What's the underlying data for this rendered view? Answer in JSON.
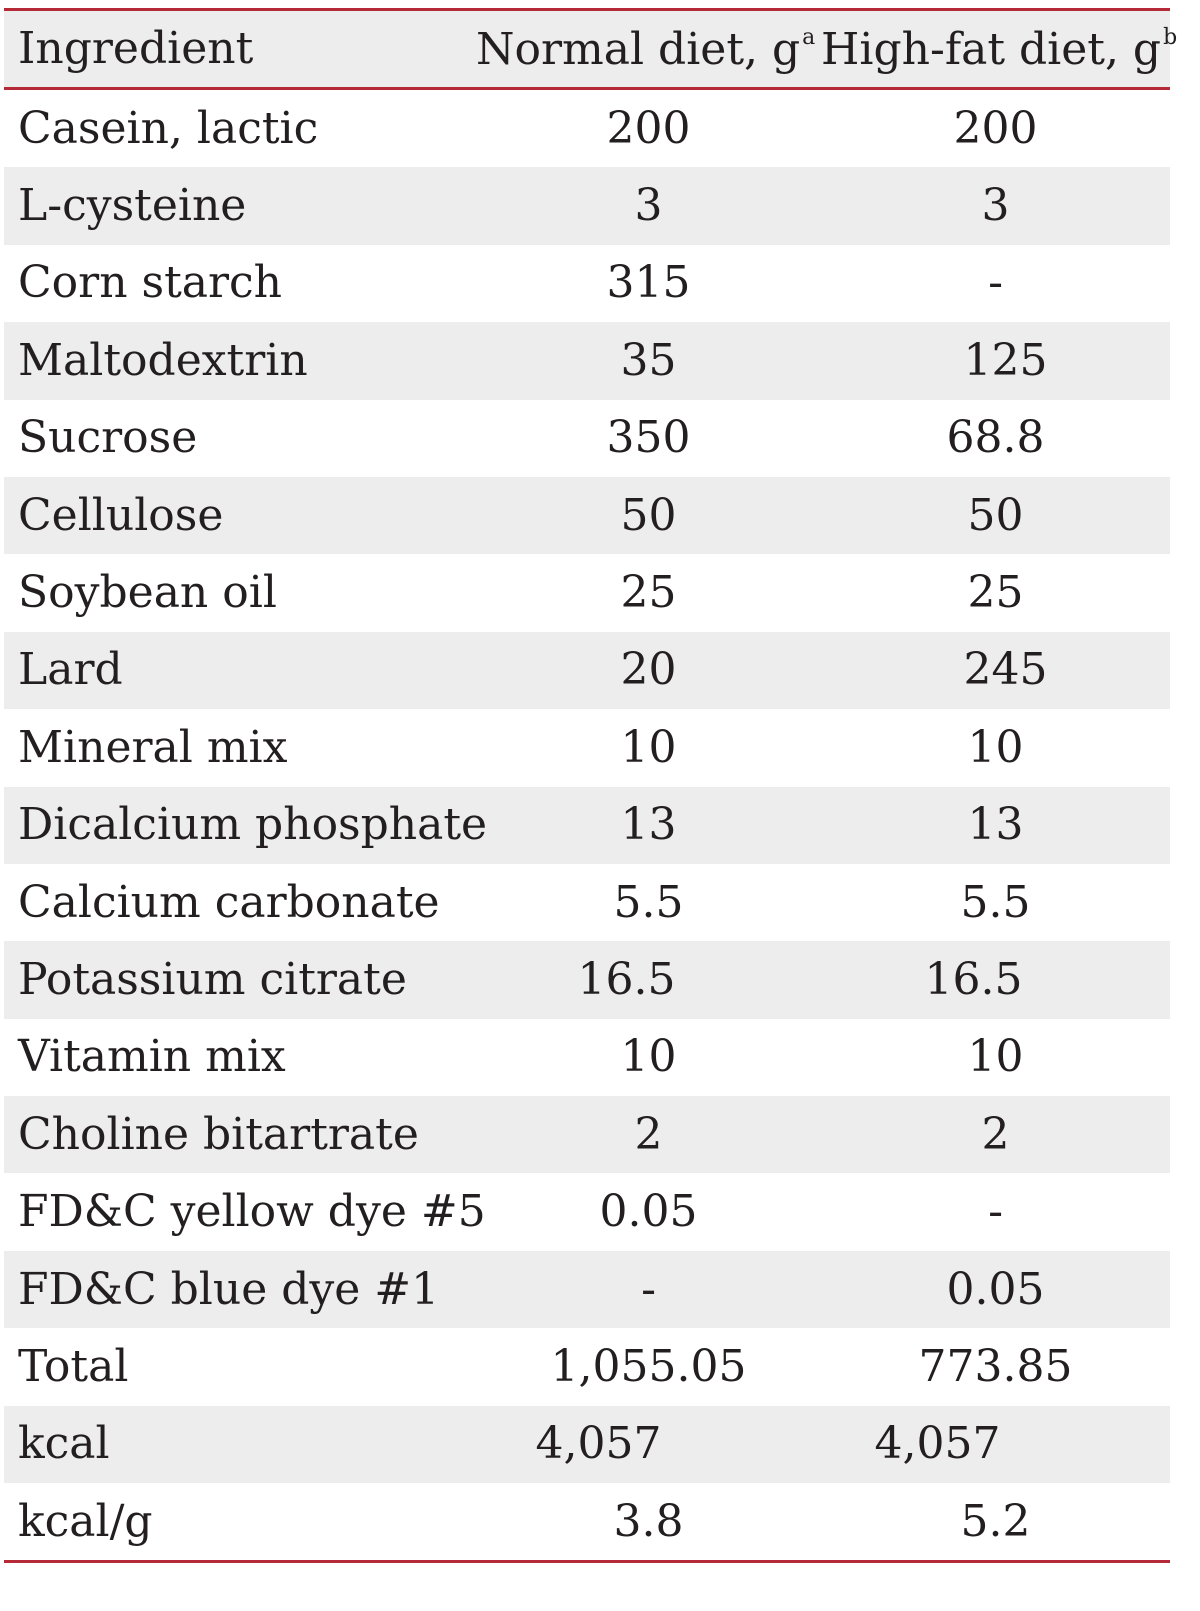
{
  "headers": {
    "ingredient": "Ingredient",
    "normal": "Normal diet, g",
    "normal_sup": "a",
    "highfat": "High-fat diet, g",
    "highfat_sup": "b"
  },
  "rows": [
    {
      "ingredient": "Casein, lactic",
      "normal": "200",
      "highfat": "200"
    },
    {
      "ingredient": "L-cysteine",
      "normal": "3",
      "highfat": "3"
    },
    {
      "ingredient": "Corn starch",
      "normal": "315",
      "highfat": "-"
    },
    {
      "ingredient": "Maltodextrin",
      "normal": "35",
      "highfat": "125"
    },
    {
      "ingredient": "Sucrose",
      "normal": "350",
      "highfat": "68.8"
    },
    {
      "ingredient": "Cellulose",
      "normal": "50",
      "highfat": "50"
    },
    {
      "ingredient": "Soybean oil",
      "normal": "25",
      "highfat": "25"
    },
    {
      "ingredient": "Lard",
      "normal": "20",
      "highfat": "245"
    },
    {
      "ingredient": "Mineral mix",
      "normal": "10",
      "highfat": "10"
    },
    {
      "ingredient": "Dicalcium phosphate",
      "normal": "13",
      "highfat": "13"
    },
    {
      "ingredient": "Calcium carbonate",
      "normal": "5.5",
      "highfat": "5.5"
    },
    {
      "ingredient": "Potassium citrate",
      "normal": "16.5",
      "highfat": "16.5"
    },
    {
      "ingredient": "Vitamin mix",
      "normal": "10",
      "highfat": "10"
    },
    {
      "ingredient": "Choline bitartrate",
      "normal": "2",
      "highfat": "2"
    },
    {
      "ingredient": "FD&C yellow dye #5",
      "normal": "0.05",
      "highfat": "-"
    },
    {
      "ingredient": "FD&C blue dye #1",
      "normal": "-",
      "highfat": "0.05"
    },
    {
      "ingredient": "Total",
      "normal": "1,055.05",
      "highfat": "773.85"
    },
    {
      "ingredient": "kcal",
      "normal": "4,057",
      "highfat": "4,057"
    },
    {
      "ingredient": "kcal/g",
      "normal": "3.8",
      "highfat": "5.2"
    }
  ]
}
